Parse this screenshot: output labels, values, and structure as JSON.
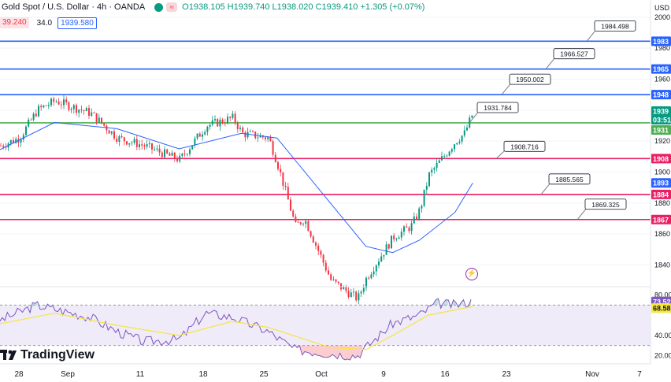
{
  "header": {
    "title": "Gold Spot / U.S. Dollar · 4h · OANDA",
    "ohlc": "O1938.105 H1939.740 L1938.020 C1939.410 +1.305 (+0.07%)",
    "bid": "39.240",
    "spread": "34.0",
    "ask": "1939.580",
    "axis_currency": "USD"
  },
  "brand": {
    "name": "TradingView"
  },
  "colors": {
    "up": "#089981",
    "down": "#f23645",
    "ma": "#2962ff",
    "support": "#e91e63",
    "resistance": "#2962ff",
    "pivot": "#4caf50",
    "rsi": "#7e57c2",
    "rsi_ma": "#f5e642"
  },
  "chart_data": [
    {
      "type": "candlestick",
      "symbol": "XAUUSD",
      "timeframe": "4h",
      "ylim": [
        1828,
        2004
      ],
      "y_ticks": [
        1840,
        1860,
        1880,
        1900,
        1920,
        1940,
        1960,
        1980,
        2000
      ],
      "x_ticks": [
        "28",
        "Sep",
        "11",
        "18",
        "25",
        "Oct",
        "9",
        "16",
        "23",
        "Nov",
        "7"
      ],
      "horizontal_levels": [
        {
          "value": 1984.498,
          "label": "1984.498",
          "axis_label": "1983",
          "color": "#2962ff"
        },
        {
          "value": 1966.527,
          "label": "1966.527",
          "axis_label": "1965",
          "color": "#2962ff"
        },
        {
          "value": 1950.002,
          "label": "1950.002",
          "axis_label": "1948",
          "color": "#2962ff"
        },
        {
          "value": 1931.784,
          "label": "1931.784",
          "axis_label": "1931",
          "color": "#4caf50"
        },
        {
          "value": 1908.716,
          "label": "1908.716",
          "axis_label": "1908",
          "color": "#e91e63"
        },
        {
          "value": 1885.565,
          "label": "1885.565",
          "axis_label": "1884",
          "color": "#e91e63"
        },
        {
          "value": 1869.325,
          "label": "1869.325",
          "axis_label": "1867",
          "color": "#e91e63"
        }
      ],
      "moving_average_axis_label": "1893",
      "last_price_label": "1939",
      "countdown_label": "03:51",
      "price_path": [
        [
          "Aug 25",
          1915
        ],
        [
          "Aug 28",
          1922
        ],
        [
          "Aug 30",
          1940
        ],
        [
          "Sep 1",
          1946
        ],
        [
          "Sep 5",
          1938
        ],
        [
          "Sep 8",
          1922
        ],
        [
          "Sep 11",
          1917
        ],
        [
          "Sep 14",
          1910
        ],
        [
          "Sep 15",
          1908
        ],
        [
          "Sep 18",
          1930
        ],
        [
          "Sep 21",
          1935
        ],
        [
          "Sep 22",
          1925
        ],
        [
          "Sep 25",
          1922
        ],
        [
          "Sep 26",
          1905
        ],
        [
          "Sep 28",
          1865
        ],
        [
          "Sep 29",
          1870
        ],
        [
          "Oct 2",
          1830
        ],
        [
          "Oct 5",
          1818
        ],
        [
          "Oct 6",
          1832
        ],
        [
          "Oct 9",
          1858
        ],
        [
          "Oct 11",
          1865
        ],
        [
          "Oct 12",
          1876
        ],
        [
          "Oct 13",
          1898
        ],
        [
          "Oct 16",
          1920
        ],
        [
          "Oct 17",
          1925
        ],
        [
          "Oct 18",
          1939
        ]
      ],
      "moving_average_path": [
        [
          "Aug 25",
          1912
        ],
        [
          "Sep 1",
          1932
        ],
        [
          "Sep 8",
          1928
        ],
        [
          "Sep 15",
          1915
        ],
        [
          "Sep 22",
          1925
        ],
        [
          "Sep 26",
          1922
        ],
        [
          "Oct 2",
          1880
        ],
        [
          "Oct 6",
          1852
        ],
        [
          "Oct 9",
          1848
        ],
        [
          "Oct 12",
          1856
        ],
        [
          "Oct 16",
          1874
        ],
        [
          "Oct 18",
          1893
        ]
      ]
    },
    {
      "type": "line",
      "indicator": "RSI",
      "ylim": [
        15,
        85
      ],
      "y_ticks": [
        80.0,
        40.0,
        20.0
      ],
      "band": [
        30,
        70
      ],
      "labels": {
        "rsi": "73.52",
        "rsi_ma": "68.58"
      },
      "rsi_path": [
        [
          "Aug 25",
          52
        ],
        [
          "Aug 30",
          70
        ],
        [
          "Sep 5",
          58
        ],
        [
          "Sep 8",
          44
        ],
        [
          "Sep 11",
          34
        ],
        [
          "Sep 15",
          36
        ],
        [
          "Sep 18",
          62
        ],
        [
          "Sep 21",
          58
        ],
        [
          "Sep 25",
          44
        ],
        [
          "Sep 28",
          26
        ],
        [
          "Oct 2",
          22
        ],
        [
          "Oct 5",
          20
        ],
        [
          "Oct 9",
          52
        ],
        [
          "Oct 12",
          60
        ],
        [
          "Oct 14",
          72
        ],
        [
          "Oct 16",
          70
        ],
        [
          "Oct 18",
          73.52
        ]
      ],
      "rsi_ma_path": [
        [
          "Aug 25",
          50
        ],
        [
          "Sep 1",
          62
        ],
        [
          "Sep 8",
          50
        ],
        [
          "Sep 15",
          40
        ],
        [
          "Sep 21",
          54
        ],
        [
          "Sep 25",
          48
        ],
        [
          "Oct 2",
          28
        ],
        [
          "Oct 6",
          26
        ],
        [
          "Oct 9",
          40
        ],
        [
          "Oct 13",
          60
        ],
        [
          "Oct 18",
          68.58
        ]
      ]
    }
  ]
}
